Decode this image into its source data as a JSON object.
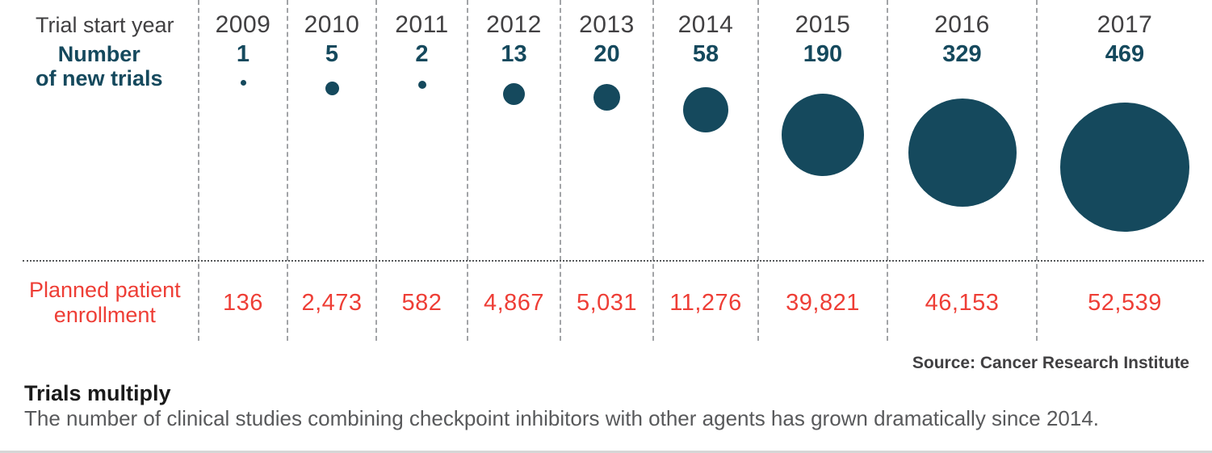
{
  "chart_data": {
    "type": "bubble",
    "title": "Trials multiply",
    "subtitle": "The number of clinical studies combining checkpoint inhibitors with other agents has grown dramatically since 2014.",
    "source": "Source: Cancer Research Institute",
    "row_labels": {
      "year": "Trial start year",
      "trials": [
        "Number",
        "of new trials"
      ],
      "enrollment": [
        "Planned patient",
        "enrollment"
      ]
    },
    "categories": [
      "2009",
      "2010",
      "2011",
      "2012",
      "2013",
      "2014",
      "2015",
      "2016",
      "2017"
    ],
    "series": [
      {
        "name": "Number of new trials",
        "values": [
          1,
          5,
          2,
          13,
          20,
          58,
          190,
          329,
          469
        ]
      },
      {
        "name": "Planned patient enrollment",
        "values": [
          136,
          2473,
          582,
          4867,
          5031,
          11276,
          39821,
          46153,
          52539
        ]
      }
    ],
    "columns": [
      {
        "year": "2009",
        "trials": "1",
        "trials_value": 1,
        "enrollment": "136"
      },
      {
        "year": "2010",
        "trials": "5",
        "trials_value": 5,
        "enrollment": "2,473"
      },
      {
        "year": "2011",
        "trials": "2",
        "trials_value": 2,
        "enrollment": "582"
      },
      {
        "year": "2012",
        "trials": "13",
        "trials_value": 13,
        "enrollment": "4,867"
      },
      {
        "year": "2013",
        "trials": "20",
        "trials_value": 20,
        "enrollment": "5,031"
      },
      {
        "year": "2014",
        "trials": "58",
        "trials_value": 58,
        "enrollment": "11,276"
      },
      {
        "year": "2015",
        "trials": "190",
        "trials_value": 190,
        "enrollment": "39,821"
      },
      {
        "year": "2016",
        "trials": "329",
        "trials_value": 329,
        "enrollment": "46,153"
      },
      {
        "year": "2017",
        "trials": "469",
        "trials_value": 469,
        "enrollment": "52,539"
      }
    ],
    "layout": {
      "bubble_scale": 7.4,
      "grid": "dashed-vertical-dividers",
      "legend_position": "none"
    },
    "colors": {
      "bubble": "#15495d",
      "trial_count_text": "#15495d",
      "enrollment_text": "#ee3e36",
      "year_text": "#414042",
      "subtitle_text": "#58595b"
    }
  }
}
